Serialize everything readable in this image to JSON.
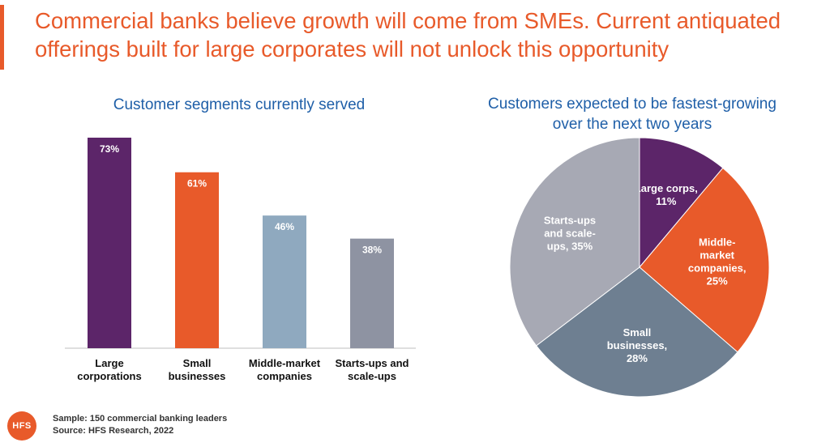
{
  "headline": "Commercial banks believe growth will come from SMEs. Current antiquated offerings built for large corporates will not unlock this opportunity",
  "footer": {
    "sample": "Sample: 150 commercial banking leaders",
    "source": "Source: HFS Research, 2022"
  },
  "logo": {
    "text": "HFS",
    "color": "#e85a2a"
  },
  "chart_data": [
    {
      "type": "bar",
      "title": "Customer segments currently served",
      "categories": [
        [
          "Large",
          "corporations"
        ],
        [
          "Small",
          "businesses"
        ],
        [
          "Middle-market",
          "companies"
        ],
        [
          "Starts-ups and",
          "scale-ups"
        ]
      ],
      "values": [
        73,
        61,
        46,
        38
      ],
      "value_labels": [
        "73%",
        "61%",
        "46%",
        "38%"
      ],
      "colors": [
        "#5c2569",
        "#e85a2a",
        "#8fa9bf",
        "#8e93a2"
      ],
      "ylim": [
        0,
        73
      ],
      "grid": false
    },
    {
      "type": "pie",
      "title": [
        "Customers expected to be fastest-growing",
        "over the next two years"
      ],
      "slices": [
        {
          "label": [
            "Large corps,",
            "11%"
          ],
          "value": 11,
          "color": "#5c2569"
        },
        {
          "label": [
            "Middle-",
            "market",
            "companies,",
            "25%"
          ],
          "value": 25,
          "color": "#e85a2a"
        },
        {
          "label": [
            "Small",
            "businesses,",
            "28%"
          ],
          "value": 28,
          "color": "#6e7f91"
        },
        {
          "label": [
            "Starts-ups",
            "and scale-",
            "ups, 35%"
          ],
          "value": 35,
          "color": "#a7a9b4"
        }
      ]
    }
  ]
}
